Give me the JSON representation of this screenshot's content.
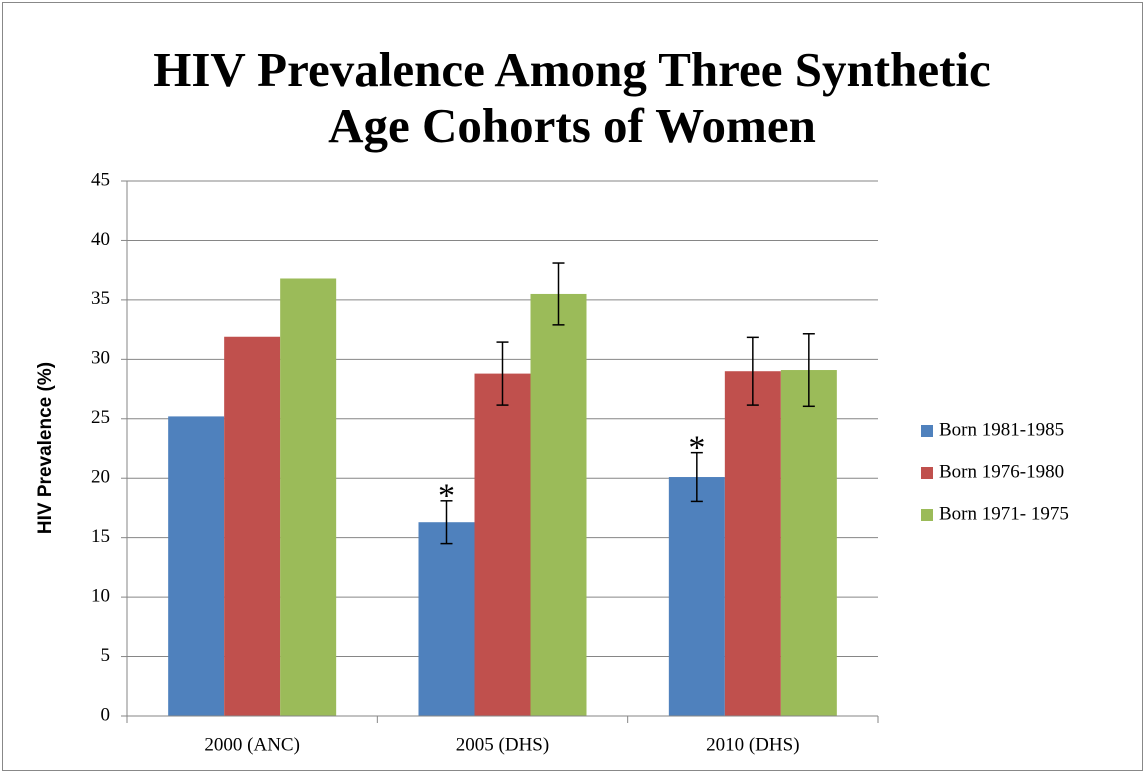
{
  "chart_data": {
    "type": "bar",
    "title": "HIV Prevalence Among Three Synthetic Age Cohorts of Women",
    "y_label": "HIV Prevalence (%)",
    "categories": [
      "2000 (ANC)",
      "2005 (DHS)",
      "2010 (DHS)"
    ],
    "series": [
      {
        "name": "Born 1981-1985",
        "color": "#4f81bd",
        "values": [
          25.2,
          16.3,
          20.1
        ],
        "errors": [
          null,
          1.8,
          2.05
        ],
        "annotations": [
          null,
          "*",
          "*"
        ]
      },
      {
        "name": "Born 1976-1980",
        "color": "#c0504d",
        "values": [
          31.9,
          28.8,
          29.0
        ],
        "errors": [
          null,
          2.65,
          2.85
        ],
        "annotations": [
          null,
          null,
          null
        ]
      },
      {
        "name": "Born 1971- 1975",
        "color": "#9bbb59",
        "values": [
          36.8,
          35.5,
          29.1
        ],
        "errors": [
          null,
          2.6,
          3.05
        ],
        "annotations": [
          null,
          null,
          null
        ]
      }
    ],
    "ylim": [
      0,
      45
    ],
    "yticks": [
      0,
      5,
      10,
      15,
      20,
      25,
      30,
      35,
      40,
      45
    ],
    "grid": true,
    "legend": "right"
  }
}
